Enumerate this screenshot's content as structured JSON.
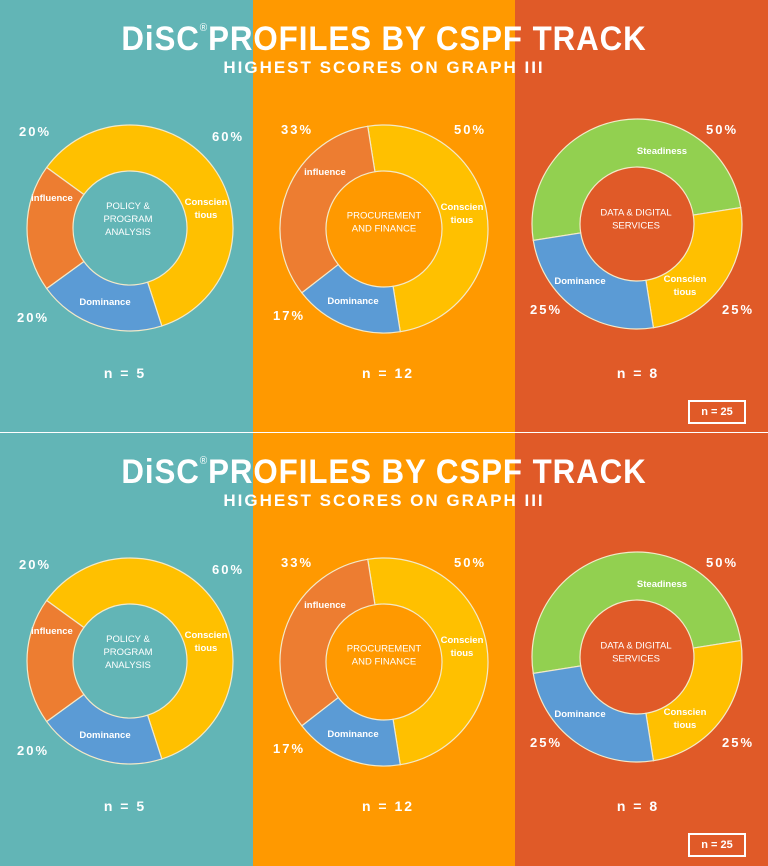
{
  "copies": [
    {
      "title": "DiSC",
      "title_mark": "®",
      "title_rest": "PROFILES BY CSPF TRACK",
      "subtitle": "HIGHEST SCORES ON GRAPH III",
      "total": "n = 25"
    },
    {
      "title": "DiSC",
      "title_mark": "®",
      "title_rest": "PROFILES BY CSPF TRACK",
      "subtitle": "HIGHEST SCORES ON GRAPH III",
      "total": "n = 25"
    }
  ],
  "colors": {
    "panel_teal": "#62B5B6",
    "panel_orange": "#FF9900",
    "panel_red": "#E05A28",
    "Conscientious": "#FFC000",
    "influence": "#ED7D31",
    "Dominance": "#5B9BD5",
    "Steadiness": "#92D050"
  },
  "chart_data": [
    {
      "type": "pie",
      "title": "POLICY & PROGRAM ANALYSIS",
      "n_label": "n = 5",
      "slices": [
        {
          "name": "Conscien tious",
          "value": 60,
          "label": "60%"
        },
        {
          "name": "Dominance",
          "value": 20,
          "label": "20%"
        },
        {
          "name": "influence",
          "value": 20,
          "label": "20%"
        }
      ]
    },
    {
      "type": "pie",
      "title": "PROCUREMENT AND FINANCE",
      "n_label": "n = 12",
      "slices": [
        {
          "name": "Conscien tious",
          "value": 50,
          "label": "50%"
        },
        {
          "name": "Dominance",
          "value": 17,
          "label": "17%"
        },
        {
          "name": "influence",
          "value": 33,
          "label": "33%"
        }
      ]
    },
    {
      "type": "pie",
      "title": "DATA & DIGITAL SERVICES",
      "n_label": "n = 8",
      "slices": [
        {
          "name": "Steadiness",
          "value": 50,
          "label": "50%"
        },
        {
          "name": "Conscien tious",
          "value": 25,
          "label": "25%"
        },
        {
          "name": "Dominance",
          "value": 25,
          "label": "25%"
        }
      ]
    },
    {
      "type": "pie",
      "title": "POLICY & PROGRAM ANALYSIS",
      "n_label": "n = 5",
      "slices": [
        {
          "name": "Conscien tious",
          "value": 60,
          "label": "60%"
        },
        {
          "name": "Dominance",
          "value": 20,
          "label": "20%"
        },
        {
          "name": "influence",
          "value": 20,
          "label": "20%"
        }
      ]
    },
    {
      "type": "pie",
      "title": "PROCUREMENT AND FINANCE",
      "n_label": "n = 12",
      "slices": [
        {
          "name": "Conscien tious",
          "value": 50,
          "label": "50%"
        },
        {
          "name": "Dominance",
          "value": 17,
          "label": "17%"
        },
        {
          "name": "influence",
          "value": 33,
          "label": "33%"
        }
      ]
    },
    {
      "type": "pie",
      "title": "DATA & DIGITAL SERVICES",
      "n_label": "n = 8",
      "slices": [
        {
          "name": "Steadiness",
          "value": 50,
          "label": "50%"
        },
        {
          "name": "Conscien tious",
          "value": 25,
          "label": "25%"
        },
        {
          "name": "Dominance",
          "value": 25,
          "label": "25%"
        }
      ]
    }
  ]
}
